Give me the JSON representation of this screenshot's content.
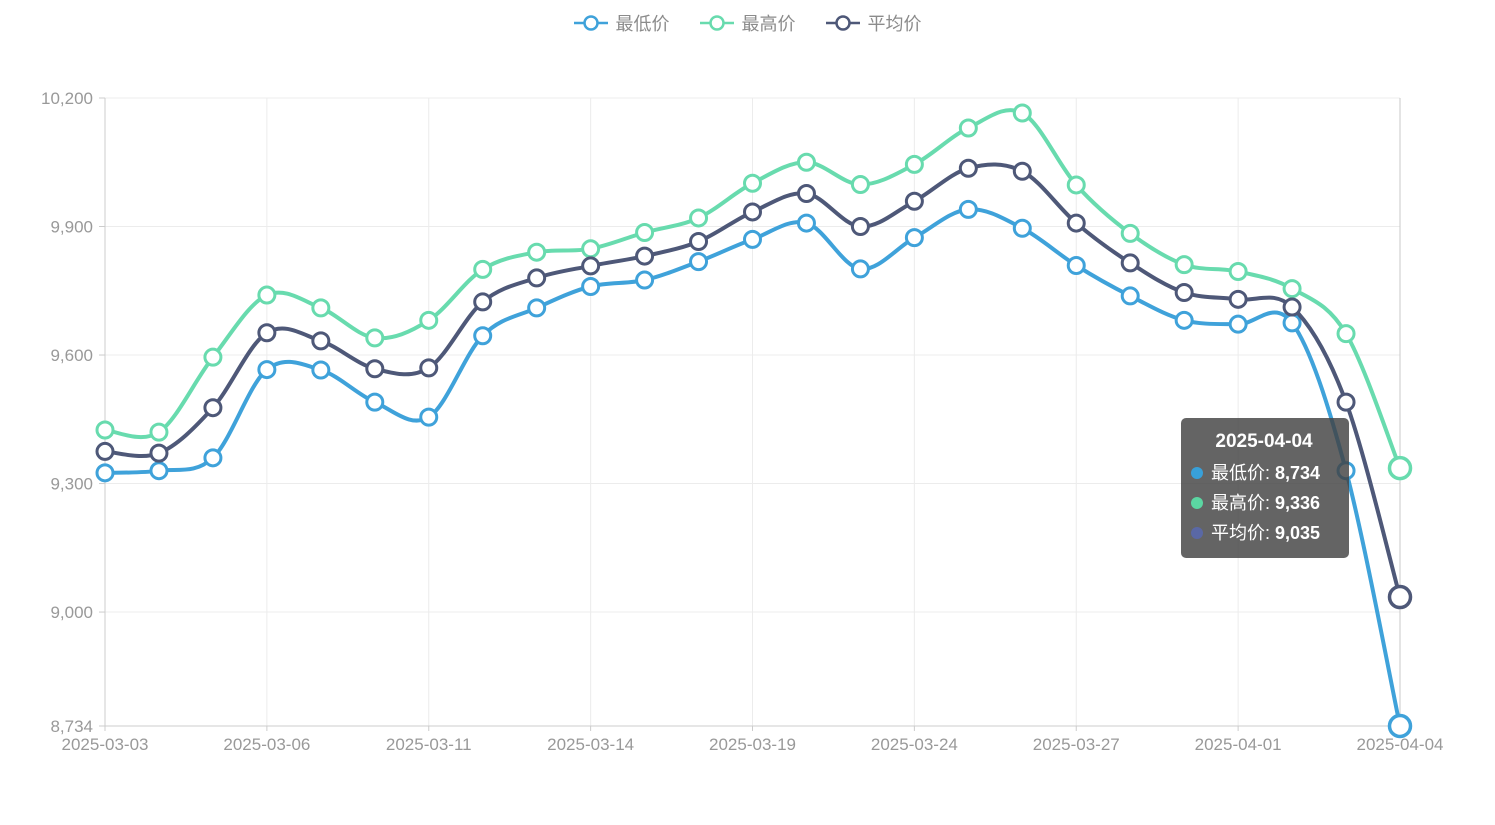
{
  "colors": {
    "grid": "#ececec",
    "axis_line": "#cccccc",
    "axis_label": "#999999",
    "legend_text": "#8b8b8b",
    "axis_pointer": "#c9c9c9",
    "tooltip_bg": "rgba(66,66,66,0.82)",
    "point_fill": "#ffffff"
  },
  "tooltip": {
    "title": "2025-04-04",
    "rows": [
      {
        "label": "最低价:",
        "value": "8,734",
        "dot_color": "#38a0d9"
      },
      {
        "label": "最高价:",
        "value": "9,336",
        "dot_color": "#5bd6a2"
      },
      {
        "label": "平均价:",
        "value": "9,035",
        "dot_color": "#5a68a5"
      }
    ]
  },
  "chart_data": {
    "type": "line",
    "smooth": true,
    "grid": true,
    "legend_position": "top",
    "x": [
      "2025-03-03",
      "2025-03-04",
      "2025-03-05",
      "2025-03-06",
      "2025-03-07",
      "2025-03-10",
      "2025-03-11",
      "2025-03-12",
      "2025-03-13",
      "2025-03-14",
      "2025-03-17",
      "2025-03-18",
      "2025-03-19",
      "2025-03-20",
      "2025-03-21",
      "2025-03-24",
      "2025-03-25",
      "2025-03-26",
      "2025-03-27",
      "2025-03-28",
      "2025-03-31",
      "2025-04-01",
      "2025-04-02",
      "2025-04-03",
      "2025-04-04"
    ],
    "x_label_indices": [
      0,
      3,
      6,
      9,
      12,
      15,
      18,
      21,
      24
    ],
    "x_axis_labels": [
      "2025-03-03",
      "2025-03-06",
      "2025-03-11",
      "2025-03-14",
      "2025-03-19",
      "2025-03-24",
      "2025-03-27",
      "2025-04-01",
      "2025-04-04"
    ],
    "y_axis": {
      "min": 8734,
      "max": 10200,
      "ticks": [
        {
          "value": 8734,
          "label": "8,734"
        },
        {
          "value": 9000,
          "label": "9,000"
        },
        {
          "value": 9300,
          "label": "9,300"
        },
        {
          "value": 9600,
          "label": "9,600"
        },
        {
          "value": 9900,
          "label": "9,900"
        },
        {
          "value": 10200,
          "label": "10,200"
        }
      ]
    },
    "series": [
      {
        "name": "最低价",
        "color": "#3fa2da",
        "values": [
          9325,
          9330,
          9360,
          9566,
          9565,
          9490,
          9455,
          9645,
          9710,
          9760,
          9775,
          9818,
          9870,
          9908,
          9801,
          9874,
          9940,
          9896,
          9809,
          9738,
          9681,
          9672,
          9675,
          9330,
          8734
        ]
      },
      {
        "name": "最高价",
        "color": "#68dbae",
        "values": [
          9425,
          9420,
          9595,
          9740,
          9710,
          9640,
          9681,
          9800,
          9840,
          9848,
          9886,
          9920,
          10001,
          10050,
          9998,
          10045,
          10130,
          10165,
          9997,
          9884,
          9811,
          9795,
          9755,
          9650,
          9336
        ]
      },
      {
        "name": "平均价",
        "color": "#4e5878",
        "values": [
          9375,
          9371,
          9477,
          9652,
          9633,
          9568,
          9570,
          9724,
          9780,
          9808,
          9831,
          9865,
          9934,
          9977,
          9900,
          9959,
          10036,
          10029,
          9908,
          9815,
          9746,
          9730,
          9712,
          9490,
          9035
        ]
      }
    ],
    "highlighted_index": 24
  }
}
